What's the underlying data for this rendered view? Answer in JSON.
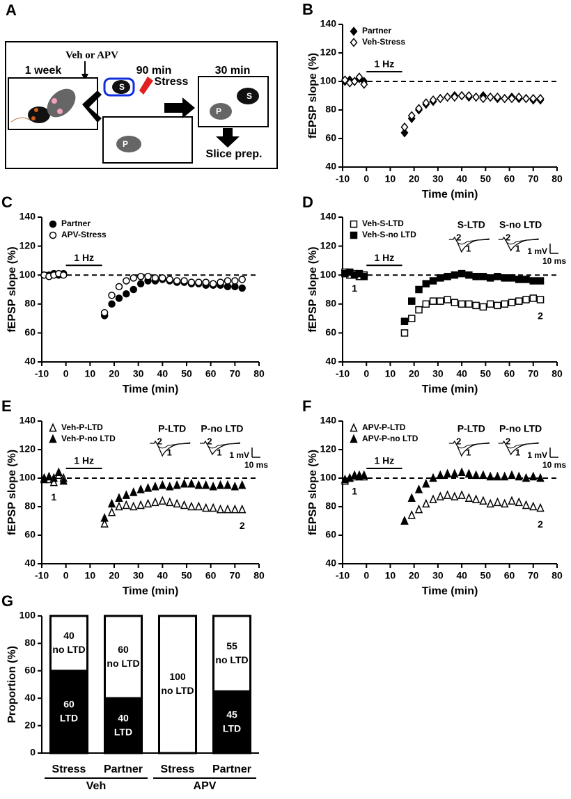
{
  "panel_a": {
    "letter": "A",
    "week": "1 week",
    "drug": "Veh or APV",
    "t90": "90 min",
    "stress": "Stress",
    "t30": "30 min",
    "slice": "Slice prep.",
    "s": "S",
    "p": "P"
  },
  "chart_data": [
    {
      "panel": "B",
      "type": "scatter",
      "ylabel": "fEPSP slope (%)",
      "xlabel": "Time (min)",
      "x": [
        -9,
        -7,
        -5,
        -3,
        -1,
        16,
        19,
        22,
        25,
        28,
        31,
        34,
        37,
        40,
        43,
        46,
        49,
        52,
        55,
        58,
        61,
        64,
        67,
        70,
        73
      ],
      "series": [
        {
          "name": "Partner",
          "color": "#000000",
          "marker": "diamond",
          "filled": true,
          "values": [
            100,
            101,
            100,
            102,
            100,
            64,
            74,
            80,
            84,
            86,
            88,
            89,
            90,
            90,
            89,
            89,
            90,
            89,
            88,
            88,
            89,
            88,
            88,
            87,
            87
          ]
        },
        {
          "name": "Veh-Stress",
          "color": "#000000",
          "marker": "diamond",
          "filled": false,
          "values": [
            101,
            99,
            100,
            103,
            98,
            68,
            76,
            81,
            85,
            87,
            88,
            89,
            89,
            90,
            90,
            89,
            88,
            89,
            89,
            88,
            88,
            89,
            88,
            88,
            88
          ]
        }
      ],
      "xlim": [
        -10,
        80
      ],
      "xticks": [
        -10,
        0,
        10,
        20,
        30,
        40,
        50,
        60,
        70,
        80
      ],
      "ylim": [
        40,
        140
      ],
      "yticks": [
        40,
        60,
        80,
        100,
        120,
        140
      ],
      "hline": 100,
      "stimulus": {
        "label": "1 Hz",
        "start": 0,
        "end": 15
      }
    },
    {
      "panel": "C",
      "type": "scatter",
      "ylabel": "fEPSP slope (%)",
      "xlabel": "Time (min)",
      "x": [
        -9,
        -7,
        -5,
        -3,
        -1,
        16,
        19,
        22,
        25,
        28,
        31,
        34,
        37,
        40,
        43,
        46,
        49,
        52,
        55,
        58,
        61,
        64,
        67,
        70,
        73
      ],
      "series": [
        {
          "name": "Partner",
          "color": "#000000",
          "marker": "circle",
          "filled": true,
          "values": [
            100,
            100,
            101,
            100,
            101,
            72,
            80,
            84,
            87,
            90,
            94,
            96,
            96,
            97,
            96,
            95,
            95,
            94,
            94,
            93,
            93,
            93,
            92,
            92,
            91
          ]
        },
        {
          "name": "APV-Stress",
          "color": "#000000",
          "marker": "circle",
          "filled": false,
          "values": [
            100,
            99,
            100,
            101,
            100,
            74,
            86,
            92,
            96,
            98,
            99,
            99,
            98,
            98,
            97,
            96,
            96,
            95,
            95,
            95,
            94,
            95,
            96,
            96,
            97
          ]
        }
      ],
      "xlim": [
        -10,
        80
      ],
      "xticks": [
        -10,
        0,
        10,
        20,
        30,
        40,
        50,
        60,
        70,
        80
      ],
      "ylim": [
        40,
        140
      ],
      "yticks": [
        40,
        60,
        80,
        100,
        120,
        140
      ],
      "hline": 100,
      "stimulus": {
        "label": "1 Hz",
        "start": 0,
        "end": 15
      }
    },
    {
      "panel": "D",
      "type": "scatter",
      "ylabel": "fEPSP slope (%)",
      "xlabel": "Time (min)",
      "x": [
        -9,
        -7,
        -5,
        -3,
        -1,
        16,
        19,
        22,
        25,
        28,
        31,
        34,
        37,
        40,
        43,
        46,
        49,
        52,
        55,
        58,
        61,
        64,
        67,
        70,
        73
      ],
      "series": [
        {
          "name": "Veh-S-LTD",
          "color": "#000000",
          "marker": "square",
          "filled": false,
          "values": [
            102,
            100,
            101,
            99,
            100,
            60,
            70,
            76,
            80,
            82,
            82,
            83,
            81,
            80,
            80,
            79,
            78,
            80,
            79,
            80,
            81,
            82,
            83,
            84,
            83
          ]
        },
        {
          "name": "Veh-S-no LTD",
          "color": "#000000",
          "marker": "square",
          "filled": true,
          "values": [
            101,
            102,
            100,
            101,
            99,
            68,
            82,
            90,
            94,
            96,
            98,
            99,
            100,
            101,
            100,
            99,
            99,
            98,
            99,
            98,
            98,
            97,
            97,
            96,
            96
          ]
        }
      ],
      "xlim": [
        -10,
        80
      ],
      "xticks": [
        -10,
        0,
        10,
        20,
        30,
        40,
        50,
        60,
        70,
        80
      ],
      "ylim": [
        40,
        140
      ],
      "yticks": [
        40,
        60,
        80,
        100,
        120,
        140
      ],
      "hline": 100,
      "stimulus": {
        "label": "1 Hz",
        "start": 0,
        "end": 15
      },
      "point_labels": [
        "1",
        "2"
      ],
      "inset": {
        "labels": [
          "S-LTD",
          "S-no LTD"
        ],
        "trace_labels": [
          "1",
          "2"
        ],
        "scale_y": "1 mV",
        "scale_x": "10 ms"
      }
    },
    {
      "panel": "E",
      "type": "scatter",
      "ylabel": "fEPSP slope (%)",
      "xlabel": "Time (min)",
      "x": [
        -9,
        -7,
        -5,
        -3,
        -1,
        16,
        19,
        22,
        25,
        28,
        31,
        34,
        37,
        40,
        43,
        46,
        49,
        52,
        55,
        58,
        61,
        64,
        67,
        70,
        73
      ],
      "series": [
        {
          "name": "Veh-P-LTD",
          "color": "#000000",
          "marker": "triangle",
          "filled": false,
          "values": [
            100,
            99,
            97,
            102,
            100,
            68,
            76,
            80,
            81,
            80,
            81,
            82,
            83,
            84,
            83,
            82,
            81,
            80,
            80,
            79,
            79,
            78,
            78,
            78,
            78
          ]
        },
        {
          "name": "Veh-P-no LTD",
          "color": "#000000",
          "marker": "triangle",
          "filled": true,
          "values": [
            99,
            101,
            100,
            104,
            98,
            72,
            82,
            86,
            88,
            90,
            92,
            93,
            94,
            95,
            94,
            95,
            96,
            96,
            95,
            95,
            94,
            95,
            95,
            94,
            95
          ]
        }
      ],
      "xlim": [
        -10,
        80
      ],
      "xticks": [
        -10,
        0,
        10,
        20,
        30,
        40,
        50,
        60,
        70,
        80
      ],
      "ylim": [
        40,
        140
      ],
      "yticks": [
        40,
        60,
        80,
        100,
        120,
        140
      ],
      "hline": 100,
      "stimulus": {
        "label": "1 Hz",
        "start": 0,
        "end": 15
      },
      "point_labels": [
        "1",
        "2"
      ],
      "inset": {
        "labels": [
          "P-LTD",
          "P-no LTD"
        ],
        "trace_labels": [
          "1",
          "2"
        ],
        "scale_y": "1 mV",
        "scale_x": "10 ms"
      }
    },
    {
      "panel": "F",
      "type": "scatter",
      "ylabel": "fEPSP slope (%)",
      "xlabel": "Time (min)",
      "x": [
        -9,
        -7,
        -5,
        -3,
        -1,
        16,
        19,
        22,
        25,
        28,
        31,
        34,
        37,
        40,
        43,
        46,
        49,
        52,
        55,
        58,
        61,
        64,
        67,
        70,
        73
      ],
      "series": [
        {
          "name": "APV-P-LTD",
          "color": "#000000",
          "marker": "triangle",
          "filled": false,
          "values": [
            98,
            100,
            101,
            102,
            101,
            70,
            74,
            78,
            82,
            85,
            87,
            88,
            87,
            88,
            86,
            85,
            84,
            82,
            83,
            82,
            84,
            83,
            81,
            80,
            79
          ]
        },
        {
          "name": "APV-P-no LTD",
          "color": "#000000",
          "marker": "triangle",
          "filled": true,
          "values": [
            99,
            100,
            102,
            101,
            102,
            70,
            86,
            92,
            96,
            100,
            102,
            103,
            103,
            104,
            103,
            102,
            102,
            101,
            101,
            101,
            102,
            101,
            100,
            101,
            100
          ]
        }
      ],
      "xlim": [
        -10,
        80
      ],
      "xticks": [
        -10,
        0,
        10,
        20,
        30,
        40,
        50,
        60,
        70,
        80
      ],
      "ylim": [
        40,
        140
      ],
      "yticks": [
        40,
        60,
        80,
        100,
        120,
        140
      ],
      "hline": 100,
      "stimulus": {
        "label": "1 Hz",
        "start": 0,
        "end": 15
      },
      "point_labels": [
        "1",
        "2"
      ],
      "inset": {
        "labels": [
          "P-LTD",
          "P-no LTD"
        ],
        "trace_labels": [
          "1",
          "2"
        ],
        "scale_y": "1 mV",
        "scale_x": "10 ms"
      }
    },
    {
      "panel": "G",
      "type": "stacked_bar",
      "ylabel": "Proportion (%)",
      "categories": [
        "Stress",
        "Partner",
        "Stress",
        "Partner"
      ],
      "groups": [
        "Veh",
        "APV"
      ],
      "series": [
        {
          "name": "LTD",
          "color": "#000000",
          "values": [
            60,
            40,
            0,
            45
          ]
        },
        {
          "name": "no LTD",
          "color": "#ffffff",
          "values": [
            40,
            60,
            100,
            55
          ]
        }
      ],
      "ylim": [
        0,
        100
      ],
      "yticks": [
        0,
        20,
        40,
        60,
        80,
        100
      ]
    }
  ]
}
